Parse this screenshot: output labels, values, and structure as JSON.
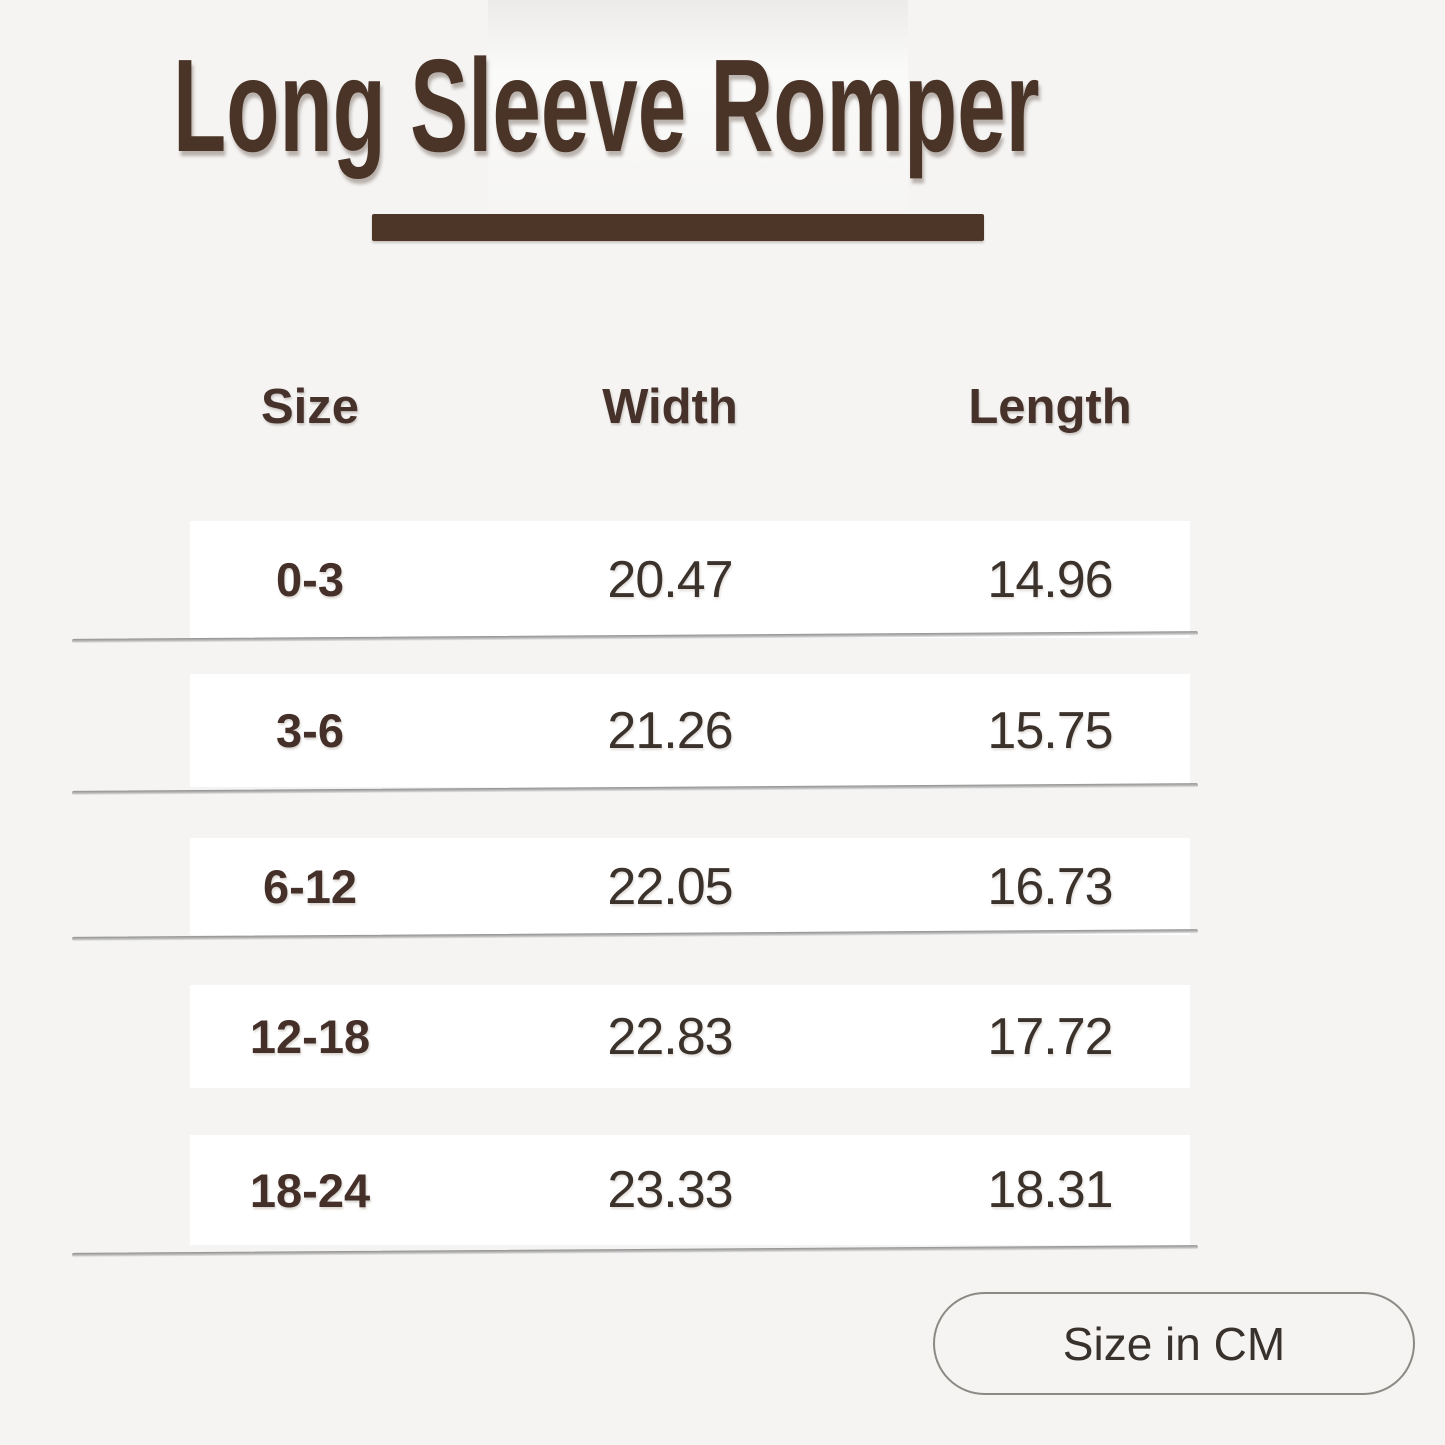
{
  "title": {
    "text": "Long Sleeve Romper"
  },
  "table": {
    "headers": [
      "Size",
      "Width",
      "Length"
    ],
    "rows": [
      {
        "size": "0-3",
        "width": "20.47",
        "length": "14.96"
      },
      {
        "size": "3-6",
        "width": "21.26",
        "length": "15.75"
      },
      {
        "size": "6-12",
        "width": "22.05",
        "length": "16.73"
      },
      {
        "size": "12-18",
        "width": "22.83",
        "length": "17.72"
      },
      {
        "size": "18-24",
        "width": "23.33",
        "length": "18.31"
      }
    ]
  },
  "footer": {
    "unit_label": "Size in CM"
  },
  "colors": {
    "background": "#f5f4f3",
    "row_band": "#ffffff",
    "title_brown": "#4a3428",
    "underline_brown": "#4d3628",
    "header_text": "#46322a",
    "size_text": "#453029",
    "number_text": "#3c322c",
    "separator_gray": "#8f8f8f",
    "pill_border": "#8d8a85"
  },
  "chart_data": {
    "type": "table",
    "title": "Long Sleeve Romper",
    "columns": [
      "Size",
      "Width",
      "Length"
    ],
    "rows": [
      [
        "0-3",
        20.47,
        14.96
      ],
      [
        "3-6",
        21.26,
        15.75
      ],
      [
        "6-12",
        22.05,
        16.73
      ],
      [
        "12-18",
        22.83,
        17.72
      ],
      [
        "18-24",
        23.33,
        18.31
      ]
    ],
    "unit_note": "Size in CM",
    "layout_hints": {
      "header_row_unbanded": true,
      "data_rows_on_white_bands": true,
      "separator_lines_after_rows": [
        1,
        2,
        3,
        5
      ]
    }
  }
}
